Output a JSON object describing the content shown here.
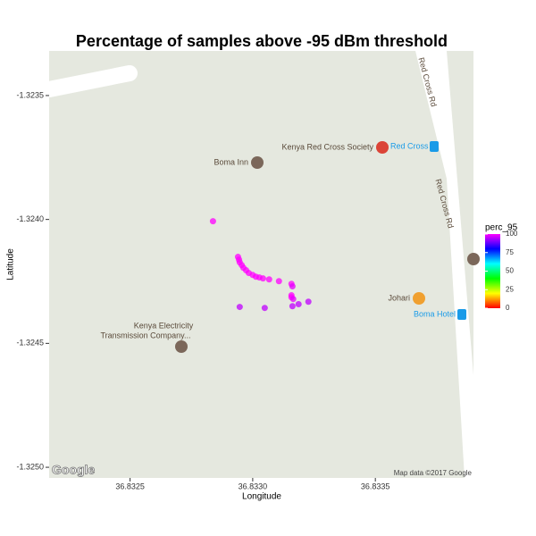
{
  "chart_data": {
    "type": "scatter",
    "title": "Percentage of samples above -95 dBm threshold",
    "x_label": "Longitude",
    "y_label": "Latitude",
    "xlim": [
      36.83217,
      36.8339
    ],
    "ylim": [
      -1.325043,
      -1.32332
    ],
    "xticks": [
      36.8325,
      {
        "value": 36.833,
        "label": "36.8330"
      },
      36.8335
    ],
    "yticks": [
      {
        "value": -1.325,
        "label": "-1.3250"
      },
      -1.3245,
      {
        "value": -1.324,
        "label": "-1.3240"
      },
      -1.3235
    ],
    "x": [
      36.832838,
      36.83294,
      36.832944,
      36.832947,
      36.832955,
      36.832962,
      36.832973,
      36.832984,
      36.833,
      36.833013,
      36.833027,
      36.833042,
      36.833067,
      36.833107,
      36.833158,
      36.833162,
      36.833158,
      36.833158,
      36.833165,
      36.833162,
      36.833187,
      36.833227,
      36.832947,
      36.833049
    ],
    "y": [
      -1.324007,
      -1.324151,
      -1.324162,
      -1.324173,
      -1.324184,
      -1.324195,
      -1.324205,
      -1.324216,
      -1.324224,
      -1.324231,
      -1.324234,
      -1.324238,
      -1.324242,
      -1.324249,
      -1.32426,
      -1.32427,
      -1.324306,
      -1.324314,
      -1.324321,
      -1.32435,
      -1.324342,
      -1.324332,
      -1.324353,
      -1.324357
    ],
    "values": [
      100,
      100,
      100,
      100,
      100,
      100,
      100,
      100,
      100,
      100,
      100,
      100,
      100,
      100,
      100,
      98,
      100,
      100,
      98,
      95,
      95,
      95,
      95,
      95
    ],
    "legend_title": "perc_95",
    "colorlim": [
      0,
      100
    ],
    "colorticks": [
      0,
      25,
      50,
      75,
      100
    ],
    "colorscale": [
      "#ff0000",
      "#ffff00",
      "#00ff00",
      "#00ffff",
      "#0000ff",
      "#ff00ff"
    ],
    "map_labels": [
      "Kenya Red Cross Society",
      "Red Cross",
      "Boma Inn",
      "Red Cross Rd",
      "Red Cross Rd",
      "Johari",
      "Boma Hotel",
      "Kenya Electricity",
      "Transmission Company...",
      "Map data ©2017 Google",
      "Google"
    ]
  }
}
